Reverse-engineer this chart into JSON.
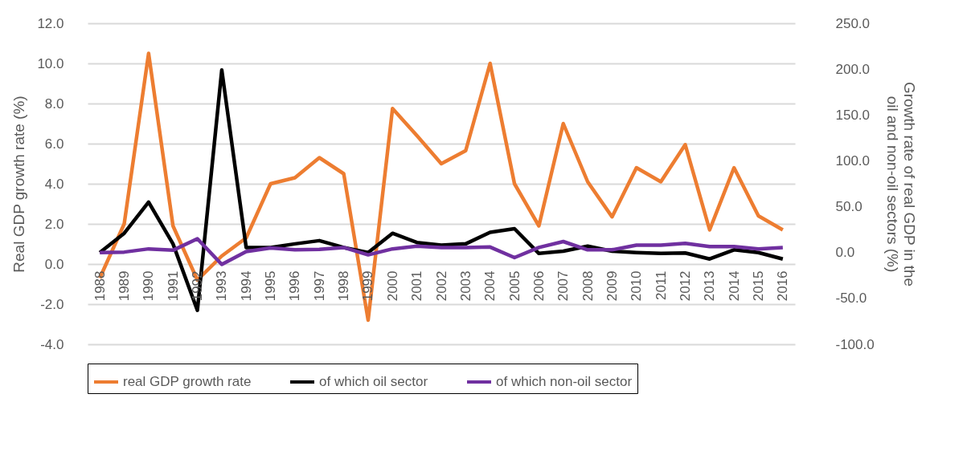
{
  "chart_data": {
    "type": "line",
    "ylabel": "Real GDP growth rate (%)",
    "y2label": "Growth rate of real GDP in the oil and non-oil sectors (%)",
    "categories": [
      "1988",
      "1989",
      "1990",
      "1991",
      "1992",
      "1993",
      "1994",
      "1995",
      "1996",
      "1997",
      "1998",
      "1999",
      "2000",
      "2001",
      "2002",
      "2003",
      "2004",
      "2005",
      "2006",
      "2007",
      "2008",
      "2009",
      "2010",
      "2011",
      "2012",
      "2013",
      "2014",
      "2015",
      "2016"
    ],
    "series": [
      {
        "name": "real GDP growth rate",
        "color": "#ed7d31",
        "values": [
          -0.7,
          2.0,
          10.5,
          1.9,
          -0.8,
          0.4,
          1.3,
          4.0,
          4.3,
          5.3,
          4.5,
          -2.8,
          7.75,
          6.4,
          5.0,
          5.65,
          10.0,
          4.0,
          1.9,
          7.0,
          4.1,
          2.35,
          4.8,
          4.1,
          5.95,
          1.7,
          4.8,
          2.4,
          1.7
        ]
      },
      {
        "name": "of which oil sector",
        "color": "#000000",
        "axis": "y2",
        "values": [
          0,
          21,
          55,
          9.5,
          -63,
          199,
          5.5,
          5.5,
          9.5,
          13,
          5.5,
          0,
          21,
          11,
          8,
          9.5,
          22,
          26,
          -1,
          1.5,
          7,
          1.5,
          0,
          -1,
          -0.5,
          -7,
          3,
          0,
          -7
        ]
      },
      {
        "name": "of which non-oil sector",
        "color": "#7030a0",
        "axis": "y2",
        "values": [
          0,
          0.5,
          4,
          2.5,
          15,
          -13,
          1,
          5,
          3,
          3.5,
          5.5,
          -2.5,
          4,
          7,
          5.5,
          5.5,
          6,
          -5.5,
          5.5,
          12,
          3,
          3,
          8,
          8,
          10,
          6.5,
          6.5,
          4,
          5.5
        ]
      }
    ],
    "ylim": [
      -4,
      12
    ],
    "yticks": [
      {
        "value": -4,
        "label": "-4.0"
      },
      {
        "value": -2,
        "label": "-2.0"
      },
      {
        "value": 0,
        "label": "0.0"
      },
      {
        "value": 2,
        "label": "2.0"
      },
      {
        "value": 4,
        "label": "4.0"
      },
      {
        "value": 6,
        "label": "6.0"
      },
      {
        "value": 8,
        "label": "8.0"
      },
      {
        "value": 10,
        "label": "10.0"
      },
      {
        "value": 12,
        "label": "12.0"
      }
    ],
    "y2lim": [
      -100,
      250
    ],
    "y2ticks": [
      {
        "value": -100,
        "label": "-100.0"
      },
      {
        "value": -50,
        "label": "-50.0"
      },
      {
        "value": 0,
        "label": "0.0"
      },
      {
        "value": 50,
        "label": "50.0"
      },
      {
        "value": 100,
        "label": "100.0"
      },
      {
        "value": 150,
        "label": "150.0"
      },
      {
        "value": 200,
        "label": "200.0"
      },
      {
        "value": 250,
        "label": "250.0"
      }
    ],
    "grid": "y",
    "legend": "bottom"
  }
}
